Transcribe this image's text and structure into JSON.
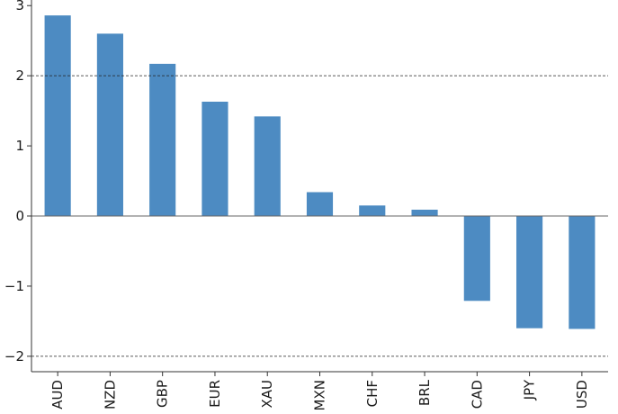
{
  "chart_data": {
    "type": "bar",
    "categories": [
      "AUD",
      "NZD",
      "GBP",
      "EUR",
      "XAU",
      "MXN",
      "CHF",
      "BRL",
      "CAD",
      "JPY",
      "USD"
    ],
    "values": [
      2.86,
      2.6,
      2.17,
      1.63,
      1.42,
      0.34,
      0.15,
      0.09,
      -1.21,
      -1.6,
      -1.61
    ],
    "bar_color": "#4d8bc2",
    "yticks": [
      -2,
      -1,
      0,
      1,
      2,
      3
    ],
    "ytick_labels": [
      "−2",
      "−1",
      "0",
      "1",
      "2",
      "3"
    ],
    "ylim": [
      -2.22,
      3.08
    ],
    "reference_lines": [
      2,
      -2
    ],
    "zero_line": 0,
    "grid": false,
    "title": "",
    "xlabel": "",
    "ylabel": ""
  }
}
